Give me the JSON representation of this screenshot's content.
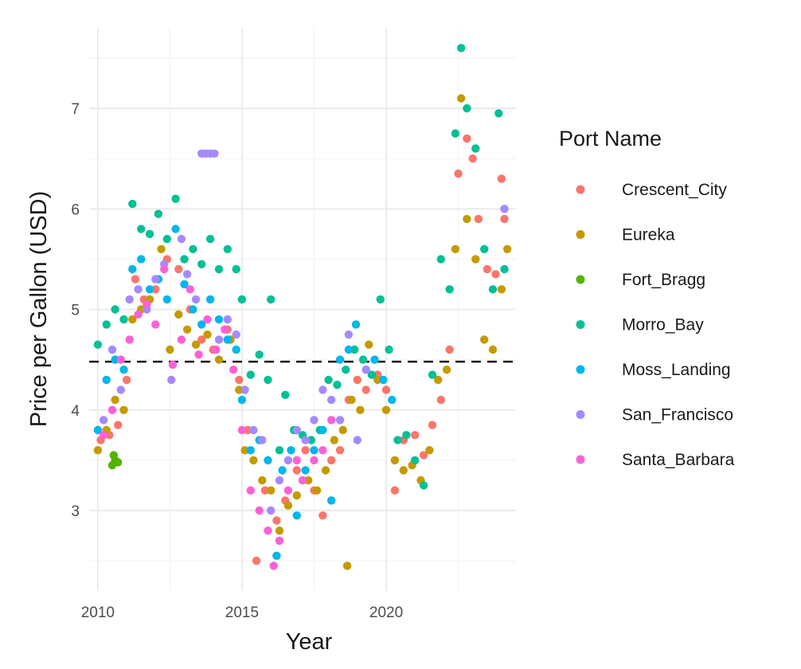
{
  "chart_data": {
    "type": "scatter",
    "title": "",
    "xlabel": "Year",
    "ylabel": "Price per Gallon (USD)",
    "xlim": [
      2009.7,
      2024.5
    ],
    "ylim": [
      2.2,
      7.8
    ],
    "x_ticks": [
      2010,
      2015,
      2020
    ],
    "y_ticks": [
      3,
      4,
      5,
      6,
      7
    ],
    "grid": true,
    "reference_line": {
      "y": 4.48,
      "style": "dashed",
      "color": "#1a1a1a"
    },
    "legend": {
      "title": "Port Name",
      "position": "right"
    },
    "series": [
      {
        "name": "Crescent_City",
        "color": "#F8766D",
        "points": [
          [
            2010.1,
            3.7
          ],
          [
            2010.4,
            3.75
          ],
          [
            2010.7,
            3.85
          ],
          [
            2011.0,
            4.3
          ],
          [
            2011.3,
            5.3
          ],
          [
            2011.6,
            5.1
          ],
          [
            2012.0,
            5.2
          ],
          [
            2012.4,
            5.5
          ],
          [
            2012.8,
            5.4
          ],
          [
            2013.2,
            5.0
          ],
          [
            2013.6,
            4.7
          ],
          [
            2014.0,
            4.6
          ],
          [
            2014.5,
            4.8
          ],
          [
            2014.9,
            4.3
          ],
          [
            2015.2,
            3.8
          ],
          [
            2015.5,
            2.5
          ],
          [
            2015.8,
            3.2
          ],
          [
            2016.2,
            2.9
          ],
          [
            2016.5,
            3.1
          ],
          [
            2016.9,
            3.4
          ],
          [
            2017.2,
            3.6
          ],
          [
            2017.5,
            3.2
          ],
          [
            2017.8,
            2.95
          ],
          [
            2018.1,
            3.5
          ],
          [
            2018.4,
            3.6
          ],
          [
            2018.7,
            4.1
          ],
          [
            2019.0,
            4.3
          ],
          [
            2019.3,
            4.2
          ],
          [
            2019.7,
            4.35
          ],
          [
            2020.0,
            4.2
          ],
          [
            2020.3,
            3.2
          ],
          [
            2020.6,
            3.7
          ],
          [
            2021.0,
            3.75
          ],
          [
            2021.3,
            3.55
          ],
          [
            2021.6,
            3.85
          ],
          [
            2021.9,
            4.1
          ],
          [
            2022.2,
            4.6
          ],
          [
            2022.5,
            6.35
          ],
          [
            2022.8,
            6.7
          ],
          [
            2023.0,
            6.5
          ],
          [
            2023.2,
            5.9
          ],
          [
            2023.5,
            5.4
          ],
          [
            2023.8,
            5.35
          ],
          [
            2024.0,
            6.3
          ],
          [
            2024.1,
            5.9
          ]
        ]
      },
      {
        "name": "Eureka",
        "color": "#C49A00",
        "points": [
          [
            2010.0,
            3.6
          ],
          [
            2010.3,
            3.8
          ],
          [
            2010.6,
            4.1
          ],
          [
            2010.9,
            4.0
          ],
          [
            2011.2,
            4.9
          ],
          [
            2011.5,
            5.0
          ],
          [
            2011.8,
            5.1
          ],
          [
            2012.2,
            5.6
          ],
          [
            2012.5,
            4.6
          ],
          [
            2012.8,
            4.95
          ],
          [
            2013.1,
            4.8
          ],
          [
            2013.4,
            4.65
          ],
          [
            2013.8,
            4.75
          ],
          [
            2014.2,
            4.5
          ],
          [
            2014.6,
            4.7
          ],
          [
            2014.9,
            4.2
          ],
          [
            2015.1,
            3.6
          ],
          [
            2015.4,
            3.5
          ],
          [
            2015.7,
            3.3
          ],
          [
            2016.0,
            3.2
          ],
          [
            2016.3,
            2.8
          ],
          [
            2016.6,
            3.05
          ],
          [
            2016.9,
            3.15
          ],
          [
            2017.3,
            3.3
          ],
          [
            2017.6,
            3.2
          ],
          [
            2017.9,
            3.4
          ],
          [
            2018.2,
            3.7
          ],
          [
            2018.5,
            3.8
          ],
          [
            2018.65,
            2.45
          ],
          [
            2018.8,
            4.1
          ],
          [
            2019.1,
            4.0
          ],
          [
            2019.4,
            4.65
          ],
          [
            2019.7,
            4.3
          ],
          [
            2020.0,
            4.0
          ],
          [
            2020.3,
            3.5
          ],
          [
            2020.6,
            3.4
          ],
          [
            2020.9,
            3.45
          ],
          [
            2021.2,
            3.3
          ],
          [
            2021.5,
            3.6
          ],
          [
            2021.8,
            4.3
          ],
          [
            2022.1,
            4.4
          ],
          [
            2022.4,
            5.6
          ],
          [
            2022.6,
            7.1
          ],
          [
            2022.8,
            5.9
          ],
          [
            2023.1,
            5.5
          ],
          [
            2023.4,
            4.7
          ],
          [
            2023.7,
            4.6
          ],
          [
            2024.0,
            5.2
          ],
          [
            2024.2,
            5.6
          ]
        ]
      },
      {
        "name": "Fort_Bragg",
        "color": "#53B400",
        "points": [
          [
            2010.5,
            3.45
          ],
          [
            2010.6,
            3.5
          ],
          [
            2010.7,
            3.48
          ],
          [
            2010.55,
            3.55
          ]
        ]
      },
      {
        "name": "Morro_Bay",
        "color": "#00C094",
        "points": [
          [
            2010.0,
            4.65
          ],
          [
            2010.3,
            4.85
          ],
          [
            2010.6,
            5.0
          ],
          [
            2010.9,
            4.9
          ],
          [
            2011.2,
            6.05
          ],
          [
            2011.5,
            5.8
          ],
          [
            2011.8,
            5.75
          ],
          [
            2012.1,
            5.95
          ],
          [
            2012.4,
            5.7
          ],
          [
            2012.7,
            6.1
          ],
          [
            2013.0,
            5.5
          ],
          [
            2013.3,
            5.6
          ],
          [
            2013.6,
            5.45
          ],
          [
            2013.9,
            5.7
          ],
          [
            2014.2,
            5.4
          ],
          [
            2014.5,
            5.6
          ],
          [
            2014.8,
            5.4
          ],
          [
            2015.0,
            5.1
          ],
          [
            2015.3,
            4.35
          ],
          [
            2015.6,
            4.55
          ],
          [
            2015.9,
            4.3
          ],
          [
            2016.0,
            5.1
          ],
          [
            2016.3,
            3.6
          ],
          [
            2016.5,
            4.15
          ],
          [
            2016.8,
            3.8
          ],
          [
            2017.1,
            3.75
          ],
          [
            2017.4,
            3.7
          ],
          [
            2017.7,
            3.8
          ],
          [
            2018.0,
            4.3
          ],
          [
            2018.3,
            4.25
          ],
          [
            2018.6,
            4.4
          ],
          [
            2018.9,
            4.6
          ],
          [
            2019.2,
            4.5
          ],
          [
            2019.5,
            4.35
          ],
          [
            2019.8,
            5.1
          ],
          [
            2020.1,
            4.6
          ],
          [
            2020.4,
            3.7
          ],
          [
            2020.7,
            3.75
          ],
          [
            2021.0,
            3.5
          ],
          [
            2021.3,
            3.25
          ],
          [
            2021.6,
            4.35
          ],
          [
            2021.9,
            5.5
          ],
          [
            2022.2,
            5.2
          ],
          [
            2022.4,
            6.75
          ],
          [
            2022.6,
            7.6
          ],
          [
            2022.8,
            7.0
          ],
          [
            2023.1,
            6.6
          ],
          [
            2023.4,
            5.6
          ],
          [
            2023.7,
            5.2
          ],
          [
            2023.9,
            6.95
          ],
          [
            2024.1,
            5.4
          ]
        ]
      },
      {
        "name": "Moss_Landing",
        "color": "#00B6EB",
        "points": [
          [
            2010.0,
            3.8
          ],
          [
            2010.3,
            4.3
          ],
          [
            2010.6,
            4.5
          ],
          [
            2010.9,
            4.4
          ],
          [
            2011.2,
            5.4
          ],
          [
            2011.5,
            5.5
          ],
          [
            2011.8,
            5.2
          ],
          [
            2012.1,
            5.3
          ],
          [
            2012.4,
            5.1
          ],
          [
            2012.7,
            5.8
          ],
          [
            2013.0,
            5.25
          ],
          [
            2013.3,
            5.0
          ],
          [
            2013.6,
            4.85
          ],
          [
            2013.9,
            5.1
          ],
          [
            2014.2,
            4.9
          ],
          [
            2014.5,
            4.7
          ],
          [
            2014.8,
            4.6
          ],
          [
            2015.0,
            4.1
          ],
          [
            2015.3,
            3.6
          ],
          [
            2015.6,
            3.7
          ],
          [
            2015.9,
            3.5
          ],
          [
            2016.2,
            2.55
          ],
          [
            2016.4,
            3.4
          ],
          [
            2016.7,
            3.6
          ],
          [
            2016.9,
            2.95
          ],
          [
            2017.2,
            3.4
          ],
          [
            2017.5,
            3.6
          ],
          [
            2017.8,
            3.8
          ],
          [
            2018.1,
            3.1
          ],
          [
            2018.4,
            4.5
          ],
          [
            2018.7,
            4.6
          ],
          [
            2018.95,
            4.85
          ],
          [
            2019.3,
            4.4
          ],
          [
            2019.6,
            4.5
          ],
          [
            2019.9,
            4.3
          ],
          [
            2020.2,
            4.1
          ]
        ]
      },
      {
        "name": "San_Francisco",
        "color": "#A58AFF",
        "points": [
          [
            2010.2,
            3.9
          ],
          [
            2010.5,
            4.6
          ],
          [
            2010.8,
            4.2
          ],
          [
            2011.1,
            5.1
          ],
          [
            2011.4,
            5.2
          ],
          [
            2011.7,
            5.0
          ],
          [
            2012.0,
            5.3
          ],
          [
            2012.3,
            5.45
          ],
          [
            2012.55,
            4.3
          ],
          [
            2012.9,
            5.7
          ],
          [
            2013.1,
            5.35
          ],
          [
            2013.4,
            5.1
          ],
          [
            2013.6,
            6.55
          ],
          [
            2013.75,
            6.55
          ],
          [
            2013.9,
            6.55
          ],
          [
            2014.05,
            6.55
          ],
          [
            2014.2,
            4.7
          ],
          [
            2014.5,
            4.9
          ],
          [
            2014.8,
            4.75
          ],
          [
            2015.1,
            4.2
          ],
          [
            2015.4,
            3.8
          ],
          [
            2015.7,
            3.7
          ],
          [
            2016.0,
            3.0
          ],
          [
            2016.3,
            3.3
          ],
          [
            2016.6,
            3.5
          ],
          [
            2016.9,
            3.8
          ],
          [
            2017.2,
            3.7
          ],
          [
            2017.5,
            3.9
          ],
          [
            2017.8,
            4.2
          ],
          [
            2018.1,
            4.1
          ],
          [
            2018.4,
            3.9
          ],
          [
            2018.7,
            4.75
          ],
          [
            2019.0,
            3.7
          ],
          [
            2019.3,
            4.4
          ],
          [
            2024.1,
            6.0
          ]
        ]
      },
      {
        "name": "Santa_Barbara",
        "color": "#FB61D7",
        "points": [
          [
            2010.2,
            3.75
          ],
          [
            2010.5,
            4.0
          ],
          [
            2010.8,
            4.5
          ],
          [
            2011.1,
            4.7
          ],
          [
            2011.4,
            4.95
          ],
          [
            2011.7,
            5.05
          ],
          [
            2012.0,
            4.85
          ],
          [
            2012.3,
            5.4
          ],
          [
            2012.6,
            4.45
          ],
          [
            2012.9,
            4.7
          ],
          [
            2013.2,
            5.2
          ],
          [
            2013.5,
            4.55
          ],
          [
            2013.8,
            4.9
          ],
          [
            2014.1,
            4.6
          ],
          [
            2014.4,
            4.8
          ],
          [
            2014.7,
            4.4
          ],
          [
            2015.0,
            3.8
          ],
          [
            2015.3,
            3.2
          ],
          [
            2015.6,
            3.0
          ],
          [
            2015.9,
            2.8
          ],
          [
            2016.1,
            2.45
          ],
          [
            2016.3,
            2.7
          ],
          [
            2016.6,
            3.2
          ],
          [
            2016.9,
            3.5
          ],
          [
            2017.1,
            3.3
          ],
          [
            2017.5,
            3.5
          ],
          [
            2017.8,
            3.6
          ],
          [
            2018.1,
            3.9
          ]
        ]
      }
    ]
  }
}
